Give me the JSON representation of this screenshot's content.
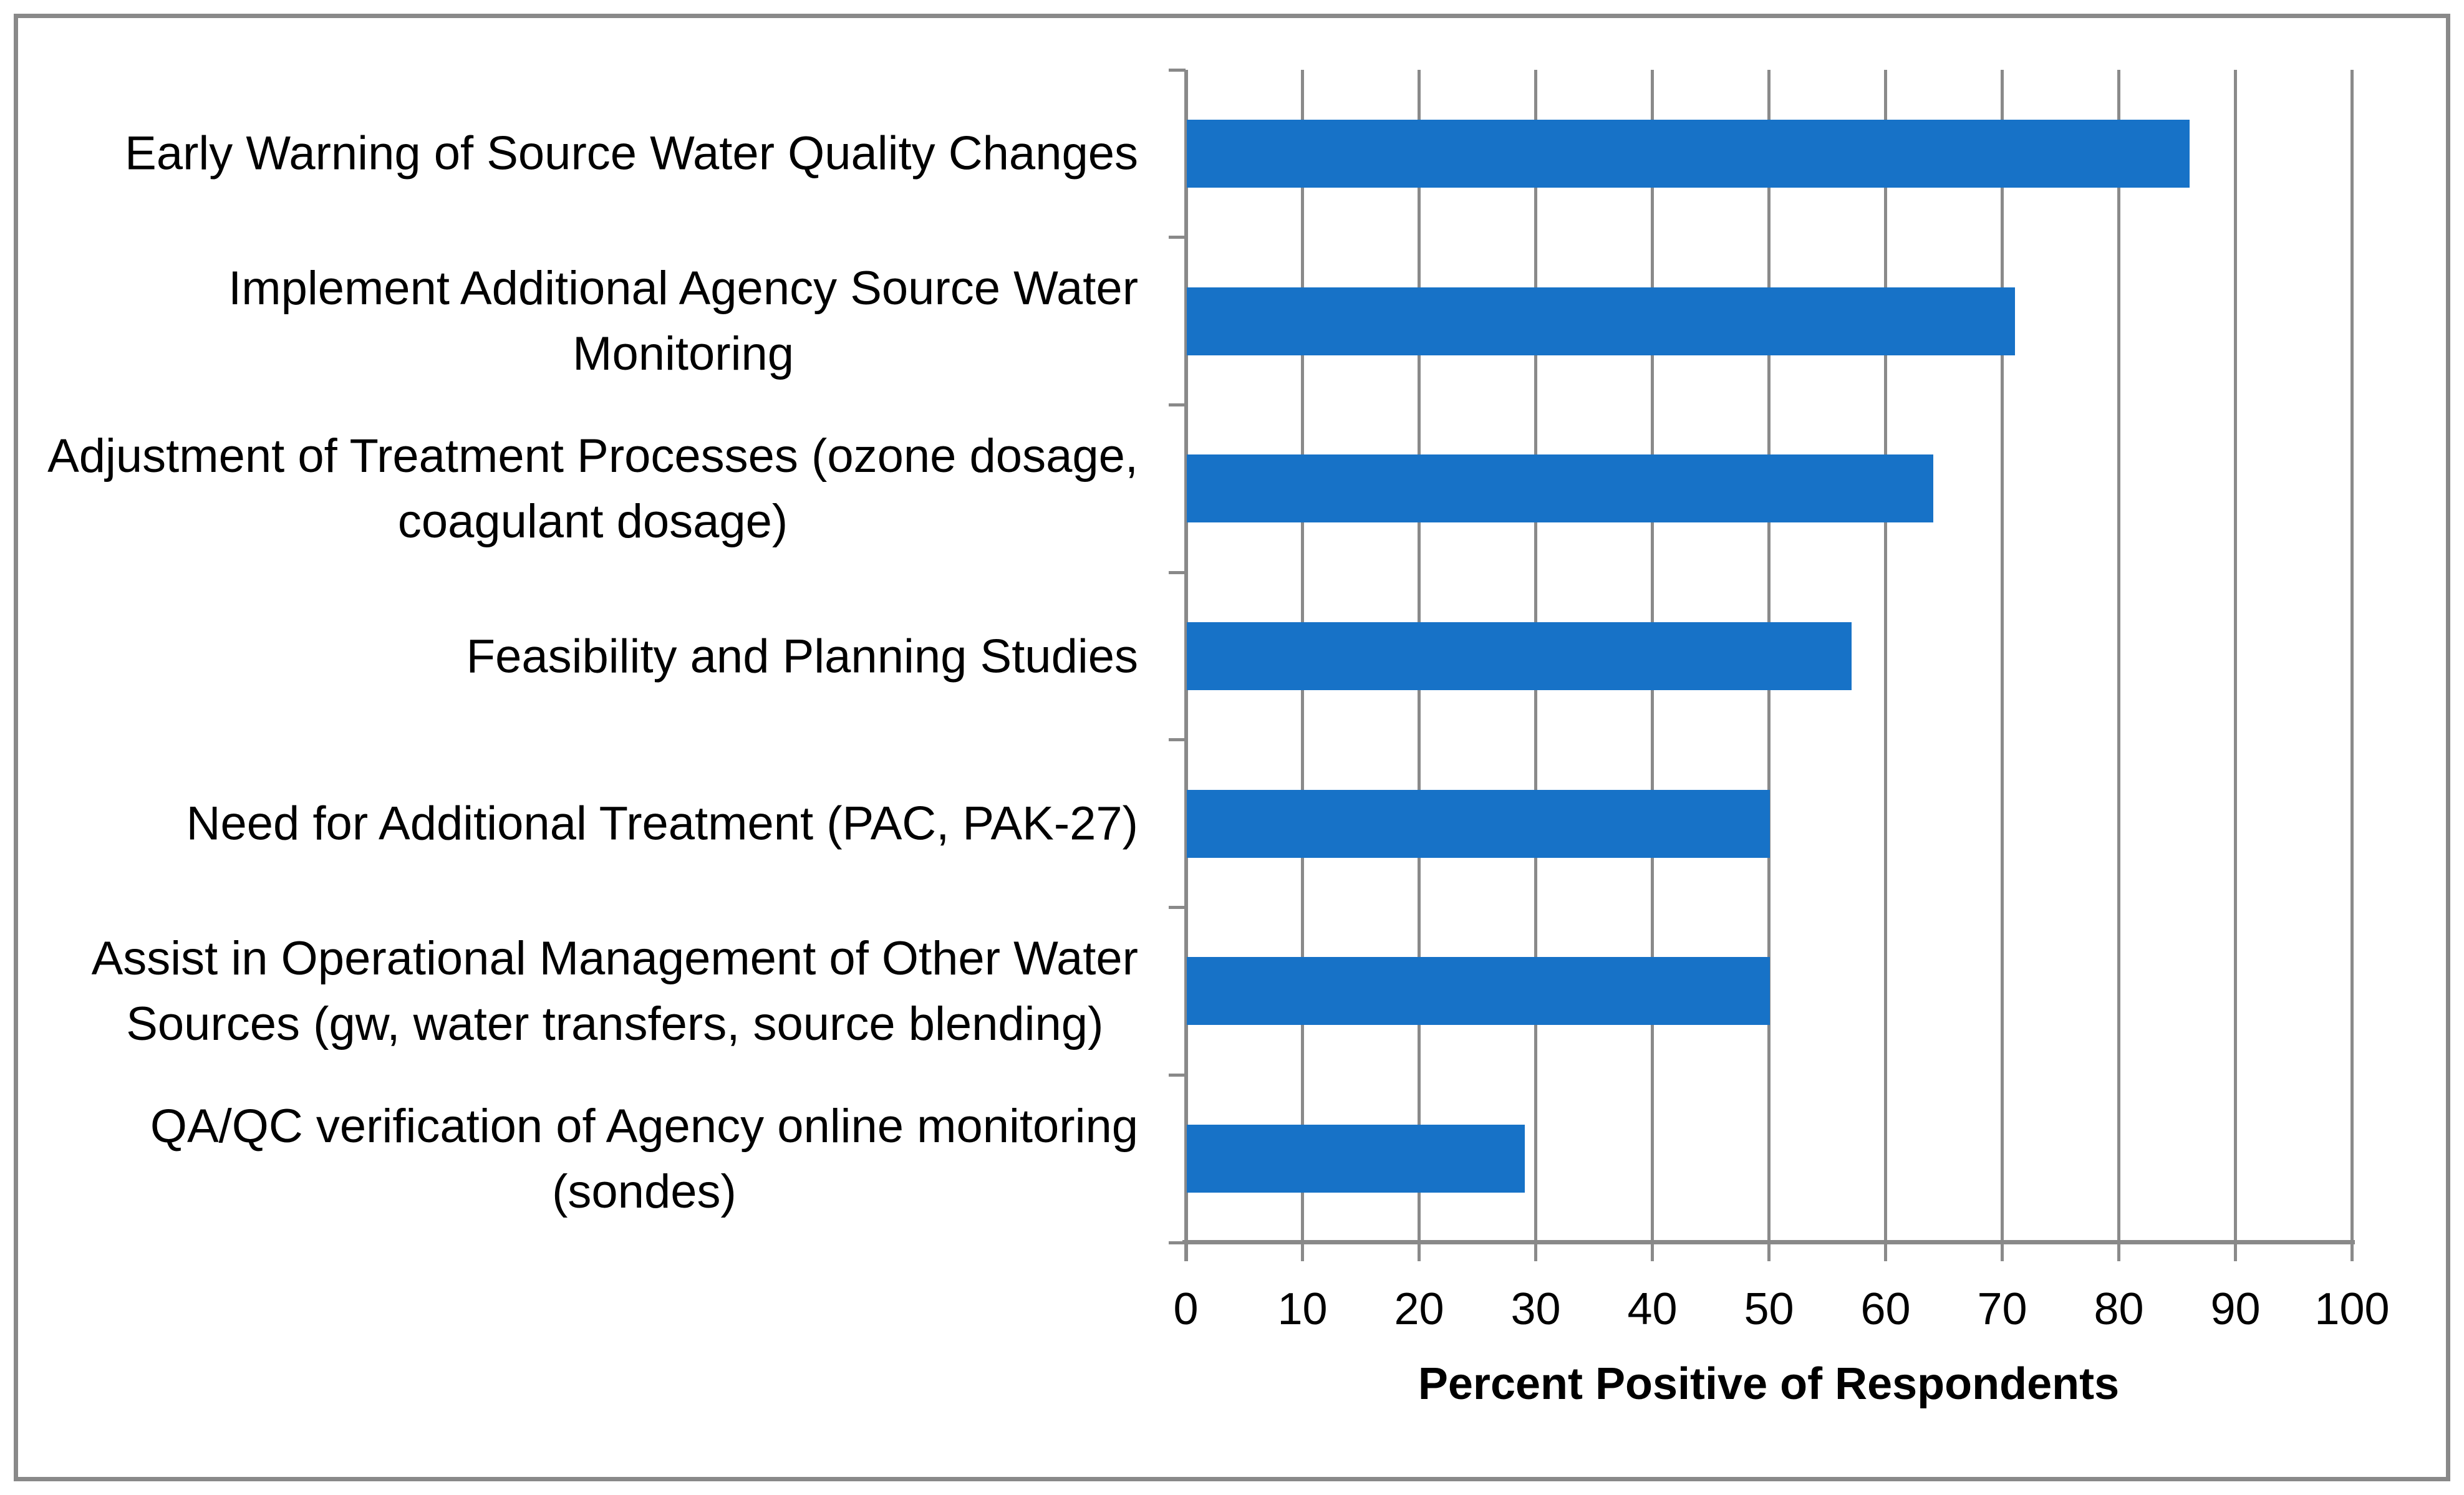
{
  "figure": {
    "background": "#FFFFFF",
    "border_color": "#898989"
  },
  "chart_data": {
    "type": "bar",
    "orientation": "horizontal",
    "title": "",
    "xlabel": "Percent Positive of Respondents",
    "ylabel": "",
    "xlim": [
      0,
      100
    ],
    "xticks": [
      0,
      10,
      20,
      30,
      40,
      50,
      60,
      70,
      80,
      90,
      100
    ],
    "grid": "vertical",
    "legend_position": "none",
    "bar_color": "#1772C7",
    "gridline_color": "#8A8A8A",
    "axis_color": "#898989",
    "text_color": "#000000",
    "categories": [
      "Early Warning of Source Water Quality Changes",
      "Implement Additional Agency Source Water Monitoring",
      "Adjustment of Treatment Processes (ozone dosage, coagulant dosage)",
      "Feasibility and Planning Studies",
      "Need for Additional Treatment (PAC, PAK-27)",
      "Assist in Operational Management of Other Water Sources (gw, water transfers, source blending)",
      "QA/QC verification of Agency online monitoring (sondes)"
    ],
    "category_lines": [
      [
        "Early Warning of Source Water Quality Changes"
      ],
      [
        "Implement Additional Agency Source Water",
        "Monitoring"
      ],
      [
        "Adjustment of Treatment Processes (ozone dosage,",
        "coagulant dosage)"
      ],
      [
        "Feasibility and Planning Studies"
      ],
      [
        "Need for Additional Treatment (PAC, PAK-27)"
      ],
      [
        "Assist in Operational Management of Other Water",
        "Sources (gw, water transfers, source blending)"
      ],
      [
        "QA/QC verification of Agency online monitoring",
        "(sondes)"
      ]
    ],
    "values": [
      86,
      71,
      64,
      57,
      50,
      50,
      29
    ]
  }
}
